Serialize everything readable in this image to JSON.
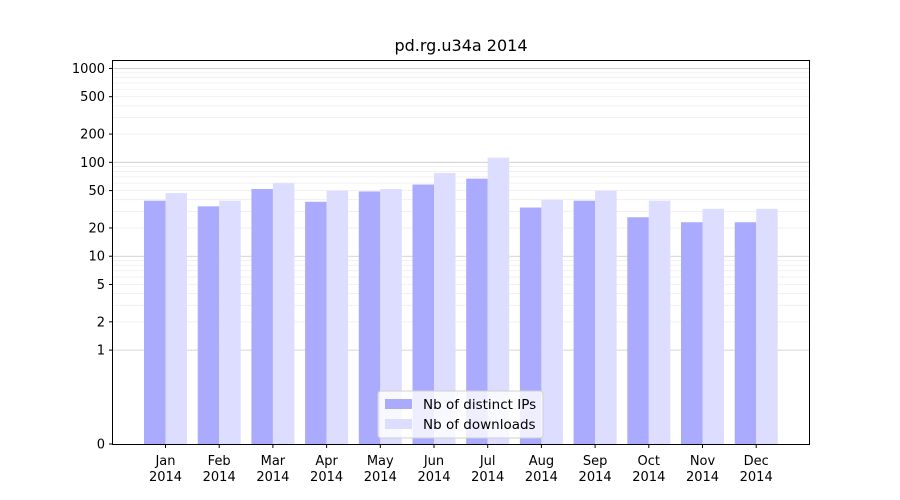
{
  "chart_data": {
    "type": "bar",
    "title": "pd.rg.u34a 2014",
    "xlabel": "",
    "ylabel": "",
    "y_scale": "symlog",
    "ylim": [
      0,
      1200
    ],
    "y_ticks": [
      {
        "value": 0,
        "label": "0"
      },
      {
        "value": 1,
        "label": "1"
      },
      {
        "value": 2,
        "label": "2"
      },
      {
        "value": 5,
        "label": "5"
      },
      {
        "value": 10,
        "label": "10"
      },
      {
        "value": 20,
        "label": "20"
      },
      {
        "value": 50,
        "label": "50"
      },
      {
        "value": 100,
        "label": "100"
      },
      {
        "value": 200,
        "label": "200"
      },
      {
        "value": 500,
        "label": "500"
      },
      {
        "value": 1000,
        "label": "1000"
      }
    ],
    "grid": true,
    "categories": [
      {
        "month": "Jan",
        "year": "2014"
      },
      {
        "month": "Feb",
        "year": "2014"
      },
      {
        "month": "Mar",
        "year": "2014"
      },
      {
        "month": "Apr",
        "year": "2014"
      },
      {
        "month": "May",
        "year": "2014"
      },
      {
        "month": "Jun",
        "year": "2014"
      },
      {
        "month": "Jul",
        "year": "2014"
      },
      {
        "month": "Aug",
        "year": "2014"
      },
      {
        "month": "Sep",
        "year": "2014"
      },
      {
        "month": "Oct",
        "year": "2014"
      },
      {
        "month": "Nov",
        "year": "2014"
      },
      {
        "month": "Dec",
        "year": "2014"
      }
    ],
    "series": [
      {
        "name": "Nb of distinct IPs",
        "color": "#aaaaff",
        "values": [
          39,
          34,
          52,
          38,
          49,
          58,
          67,
          33,
          39,
          26,
          23,
          23
        ]
      },
      {
        "name": "Nb of downloads",
        "color": "#ddddff",
        "values": [
          47,
          39,
          60,
          50,
          52,
          77,
          112,
          40,
          50,
          39,
          32,
          32
        ]
      }
    ],
    "legend_position": "bottom-center"
  }
}
